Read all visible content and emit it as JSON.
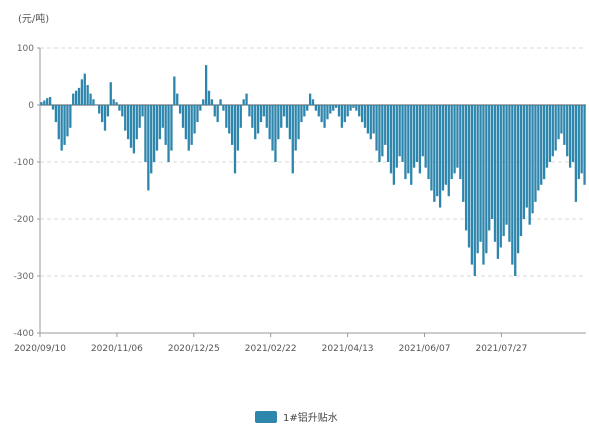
{
  "chart_data": {
    "type": "bar",
    "unit": "(元/吨)",
    "ylim": [
      -400,
      100
    ],
    "yticks": [
      "100",
      "0",
      "-100",
      "-200",
      "-300",
      "-400"
    ],
    "xtick_labels": [
      "2020/09/10",
      "2020/11/06",
      "2020/12/25",
      "2021/02/22",
      "2021/04/13",
      "2021/06/07",
      "2021/07/27"
    ],
    "grid": "horizontal-dashed",
    "legend_position": "bottom-center",
    "series": [
      {
        "name": "1#铝升贴水",
        "color": "#2e86ad",
        "values": [
          5,
          8,
          12,
          14,
          -8,
          -30,
          -60,
          -80,
          -70,
          -55,
          -40,
          20,
          25,
          30,
          45,
          55,
          35,
          20,
          10,
          0,
          -15,
          -30,
          -45,
          -20,
          40,
          10,
          5,
          -10,
          -20,
          -45,
          -60,
          -75,
          -85,
          -60,
          -40,
          -20,
          -100,
          -150,
          -120,
          -100,
          -80,
          -60,
          -40,
          -70,
          -100,
          -80,
          50,
          20,
          -15,
          -40,
          -60,
          -80,
          -70,
          -50,
          -30,
          -10,
          10,
          70,
          25,
          10,
          -20,
          -30,
          10,
          -10,
          -40,
          -50,
          -70,
          -120,
          -80,
          -40,
          10,
          20,
          -20,
          -40,
          -60,
          -50,
          -30,
          -20,
          -40,
          -60,
          -80,
          -100,
          -60,
          -40,
          -20,
          -40,
          -60,
          -120,
          -80,
          -60,
          -30,
          -20,
          -10,
          20,
          10,
          -10,
          -20,
          -30,
          -40,
          -25,
          -15,
          -10,
          -5,
          -20,
          -40,
          -30,
          -20,
          -10,
          -5,
          -10,
          -20,
          -30,
          -40,
          -50,
          -60,
          -50,
          -80,
          -100,
          -90,
          -70,
          -100,
          -120,
          -140,
          -110,
          -90,
          -100,
          -130,
          -120,
          -140,
          -110,
          -100,
          -120,
          -90,
          -110,
          -130,
          -150,
          -170,
          -160,
          -180,
          -150,
          -140,
          -160,
          -130,
          -120,
          -110,
          -130,
          -170,
          -220,
          -250,
          -280,
          -300,
          -260,
          -240,
          -280,
          -260,
          -220,
          -200,
          -240,
          -270,
          -250,
          -230,
          -210,
          -240,
          -280,
          -300,
          -260,
          -230,
          -200,
          -180,
          -210,
          -190,
          -170,
          -150,
          -140,
          -130,
          -110,
          -100,
          -90,
          -80,
          -60,
          -50,
          -70,
          -90,
          -110,
          -100,
          -170,
          -130,
          -120,
          -140
        ]
      }
    ]
  }
}
